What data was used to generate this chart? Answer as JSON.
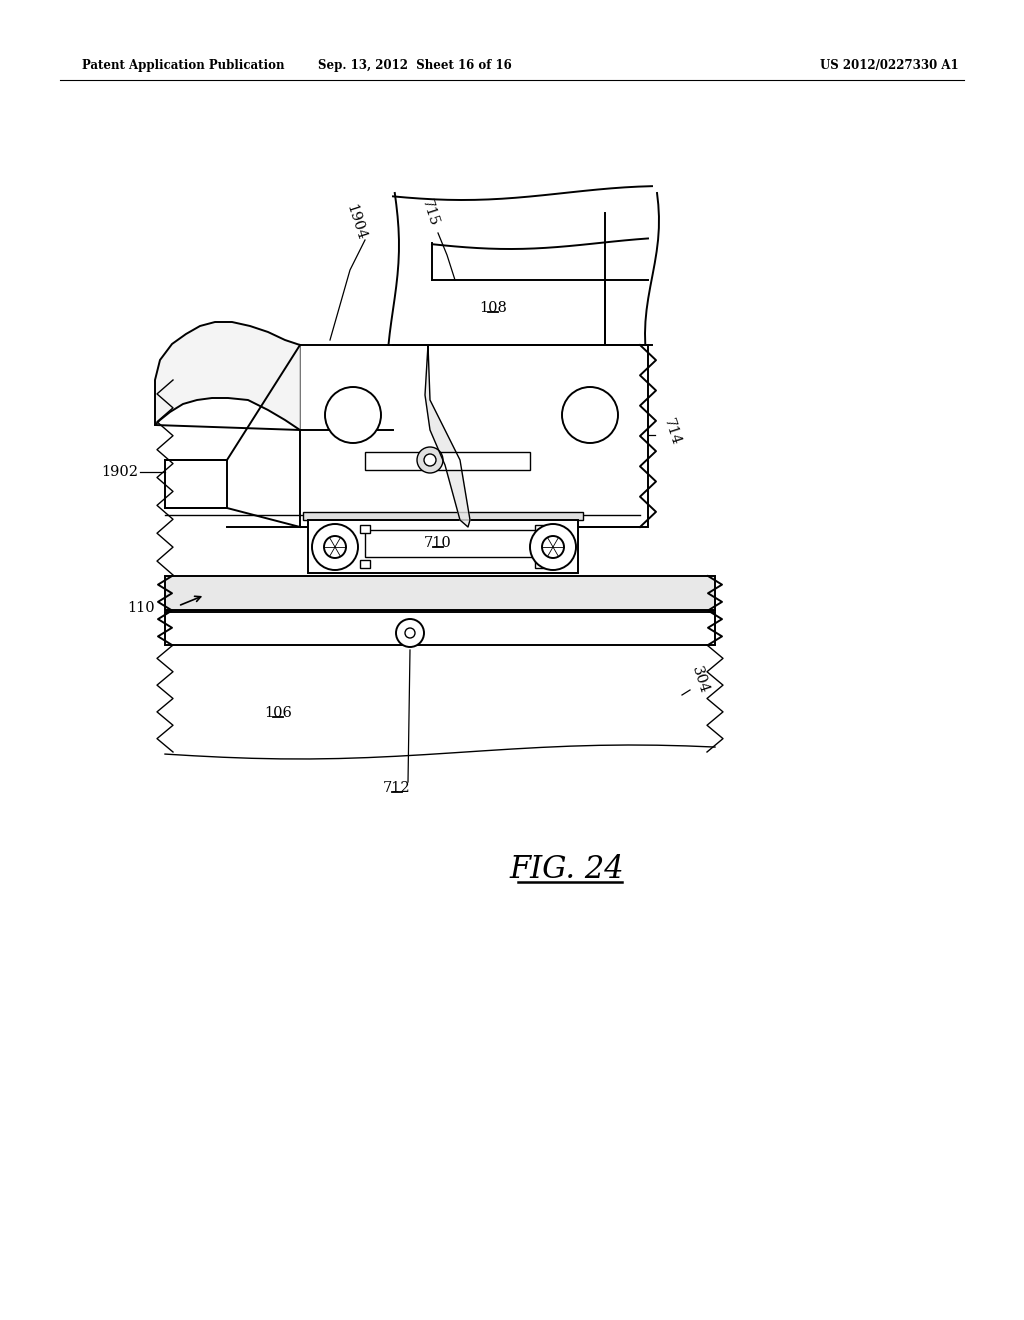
{
  "bg_color": "#ffffff",
  "header_left": "Patent Application Publication",
  "header_mid": "Sep. 13, 2012  Sheet 16 of 16",
  "header_right": "US 2012/0227330 A1",
  "fig_label": "FIG. 24",
  "label_fontsize": 10.5
}
